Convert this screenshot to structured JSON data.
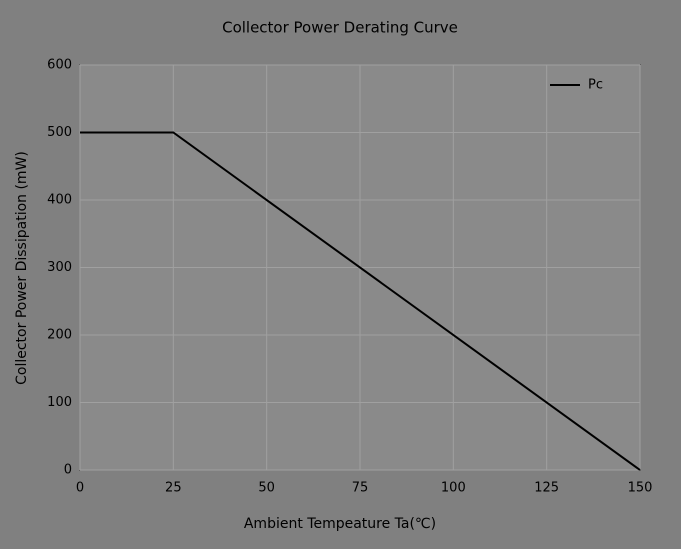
{
  "chart_data": {
    "type": "line",
    "title": "Collector Power Derating Curve",
    "xlabel": "Ambient Tempeature Ta(℃)",
    "ylabel": "Collector Power Dissipation (mW)",
    "x": [
      0,
      25,
      150
    ],
    "series": [
      {
        "name": "Pc",
        "color": "#000000",
        "values": [
          500,
          500,
          0
        ]
      }
    ],
    "xlim": [
      0,
      150
    ],
    "xticks": [
      0,
      25,
      50,
      75,
      100,
      125,
      150
    ],
    "ylim": [
      0,
      600
    ],
    "yticks": [
      0,
      100,
      200,
      300,
      400,
      500,
      600
    ],
    "grid": true
  }
}
